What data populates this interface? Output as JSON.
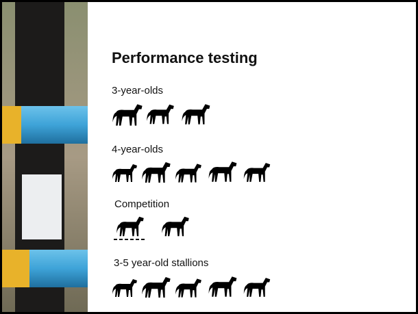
{
  "slide": {
    "title": "Performance testing",
    "sections": [
      {
        "label": "3-year-olds"
      },
      {
        "label": "4-year-olds"
      },
      {
        "label": "Competition"
      },
      {
        "label": "3-5 year-old stallions"
      }
    ]
  }
}
